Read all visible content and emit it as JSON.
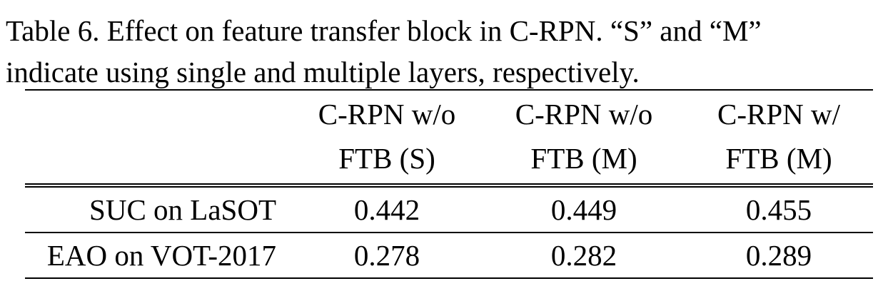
{
  "caption": {
    "line1": "Table 6. Effect on feature transfer block in C-RPN. “S” and “M”",
    "line2": "indicate using single and multiple layers, respectively."
  },
  "table": {
    "headers": [
      {
        "line1": "",
        "line2": ""
      },
      {
        "line1": "C-RPN w/o",
        "line2": "FTB (S)"
      },
      {
        "line1": "C-RPN w/o",
        "line2": "FTB (M)"
      },
      {
        "line1": "C-RPN w/",
        "line2": "FTB (M)"
      }
    ],
    "rows": [
      {
        "label": "SUC on LaSOT",
        "values": [
          "0.442",
          "0.449",
          "0.455"
        ]
      },
      {
        "label": "EAO on VOT-2017",
        "values": [
          "0.278",
          "0.282",
          "0.289"
        ]
      }
    ]
  }
}
